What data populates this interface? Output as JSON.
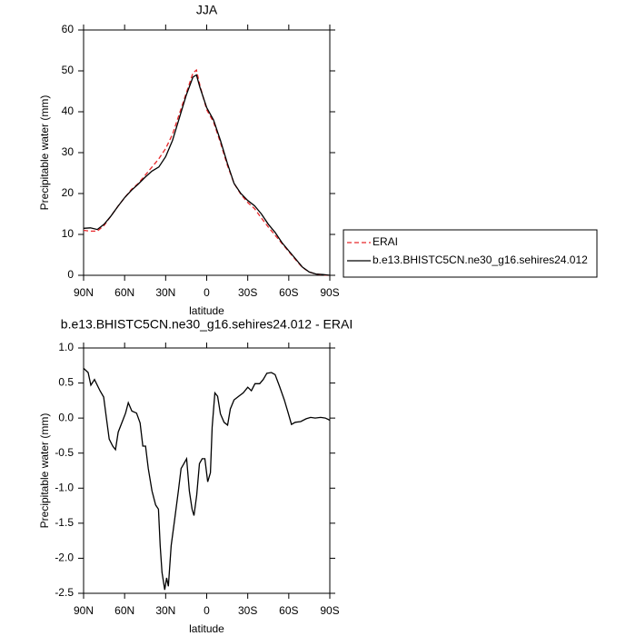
{
  "chart_data": [
    {
      "type": "line",
      "title": "JJA",
      "x_label": "latitude",
      "y_label": "Precipitable water (mm)",
      "x": [
        90,
        85,
        80,
        75,
        70,
        65,
        60,
        55,
        50,
        45,
        40,
        35,
        30,
        25,
        20,
        15,
        10,
        7.5,
        5,
        0,
        -5,
        -10,
        -15,
        -20,
        -25,
        -30,
        -35,
        -40,
        -45,
        -50,
        -55,
        -60,
        -65,
        -70,
        -75,
        -80,
        -85,
        -90
      ],
      "series": [
        {
          "name": "ERAI",
          "color": "#e8282b",
          "linestyle": "dashed",
          "values": [
            11,
            10.8,
            10.8,
            12.2,
            14.5,
            16.8,
            19,
            21,
            22.5,
            24.5,
            26.5,
            28.5,
            31,
            34.5,
            39.5,
            44.5,
            49.5,
            50.2,
            46.5,
            40.5,
            37.5,
            32.5,
            27,
            22.5,
            19.8,
            17.8,
            16.3,
            14,
            11.8,
            9.8,
            7.8,
            5.8,
            3.8,
            1.9,
            0.8,
            0.3,
            0.1,
            0
          ]
        },
        {
          "name": "b.e13.BHISTC5CN.ne30_g16.sehires24.012",
          "color": "#000000",
          "linestyle": "solid",
          "values": [
            11.5,
            11.6,
            11.2,
            12.5,
            14.5,
            16.8,
            19,
            20.8,
            22.3,
            24,
            25.5,
            26.5,
            29,
            33,
            38.5,
            44,
            48.5,
            49,
            46,
            41,
            38,
            33,
            27.5,
            22.5,
            20,
            18.3,
            17,
            15,
            12.5,
            10.5,
            8,
            6,
            4,
            2,
            0.8,
            0.3,
            0.2,
            0
          ]
        }
      ],
      "xlim": [
        90,
        -90
      ],
      "xticks": [
        {
          "value": 90,
          "label": "90N"
        },
        {
          "value": 60,
          "label": "60N"
        },
        {
          "value": 30,
          "label": "30N"
        },
        0,
        {
          "value": -30,
          "label": "30S"
        },
        {
          "value": -60,
          "label": "60S"
        },
        {
          "value": -90,
          "label": "90S"
        }
      ],
      "ylim": [
        0,
        60
      ],
      "yticks": [
        0,
        10,
        20,
        30,
        40,
        50,
        60
      ],
      "legend": "right"
    },
    {
      "type": "line",
      "title": "b.e13.BHISTC5CN.ne30_g16.sehires24.012 - ERAI",
      "x_label": "latitude",
      "y_label": "Precipitable water (mm)",
      "x": [
        90,
        86.7,
        84.7,
        82,
        78,
        75.3,
        73.3,
        71.3,
        68.7,
        66.7,
        64.7,
        61.3,
        59.3,
        57.3,
        54.7,
        51.3,
        48.7,
        46.7,
        44.7,
        42.7,
        40,
        37.3,
        35.3,
        34,
        32.7,
        30.7,
        29.3,
        28,
        26,
        23.3,
        20.7,
        18.7,
        16.7,
        14.7,
        12.7,
        10.7,
        9.3,
        7.3,
        5.3,
        3.3,
        1.3,
        -0.7,
        -2.7,
        -4,
        -6,
        -8,
        -10,
        -12.7,
        -15.3,
        -17.3,
        -20,
        -23.3,
        -26.7,
        -30,
        -32.7,
        -35.3,
        -38.7,
        -41.3,
        -44,
        -47.3,
        -50,
        -53.3,
        -56.7,
        -59.3,
        -62,
        -64.7,
        -68.7,
        -72.7,
        -76,
        -79.3,
        -83.3,
        -86.7,
        -90
      ],
      "values": [
        0.71,
        0.65,
        0.47,
        0.55,
        0.39,
        0.3,
        0,
        -0.3,
        -0.4,
        -0.45,
        -0.2,
        -0.03,
        0.07,
        0.22,
        0.1,
        0.07,
        -0.07,
        -0.4,
        -0.4,
        -0.72,
        -1.04,
        -1.24,
        -1.3,
        -1.82,
        -2.2,
        -2.45,
        -2.28,
        -2.4,
        -1.82,
        -1.43,
        -1.04,
        -0.72,
        -0.65,
        -0.58,
        -1.04,
        -1.3,
        -1.39,
        -1.1,
        -0.65,
        -0.58,
        -0.58,
        -0.91,
        -0.78,
        -0.13,
        0.36,
        0.31,
        0.06,
        -0.06,
        -0.1,
        0.13,
        0.26,
        0.31,
        0.36,
        0.44,
        0.39,
        0.49,
        0.49,
        0.55,
        0.64,
        0.65,
        0.62,
        0.45,
        0.26,
        0.09,
        -0.09,
        -0.06,
        -0.05,
        -0.01,
        0.01,
        0,
        0.01,
        0,
        -0.03
      ],
      "color": "#000000",
      "xlim": [
        90,
        -90
      ],
      "xticks": [
        {
          "value": 90,
          "label": "90N"
        },
        {
          "value": 60,
          "label": "60N"
        },
        {
          "value": 30,
          "label": "30N"
        },
        0,
        {
          "value": -30,
          "label": "30S"
        },
        {
          "value": -60,
          "label": "60S"
        },
        {
          "value": -90,
          "label": "90S"
        }
      ],
      "ylim": [
        -2.5,
        1
      ],
      "yticks": [
        {
          "value": 1,
          "label": "1.0"
        },
        0.5,
        {
          "value": 0,
          "label": "0.0"
        },
        -0.5,
        {
          "value": -1,
          "label": "-1.0"
        },
        -1.5,
        {
          "value": -2,
          "label": "-2.0"
        },
        -2.5
      ]
    }
  ]
}
